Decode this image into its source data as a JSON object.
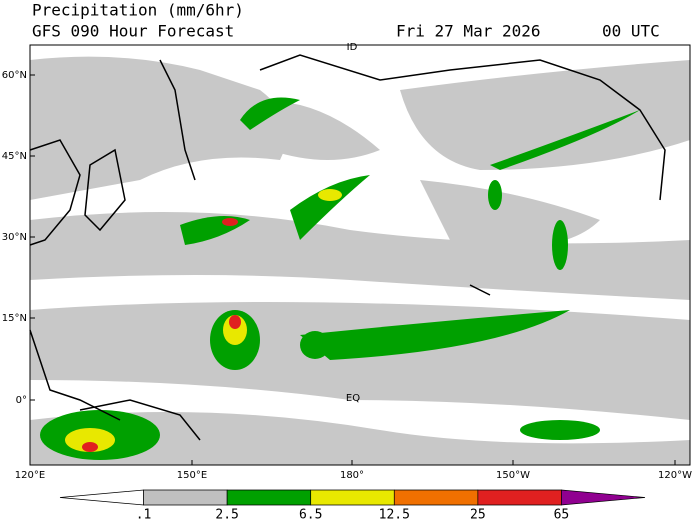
{
  "header": {
    "title": "Precipitation (mm/6hr)",
    "subtitle": "GFS 090 Hour Forecast",
    "date": "Fri 27 Mar 2026",
    "time": "00 UTC"
  },
  "map": {
    "lat_labels": [
      "60°N",
      "45°N",
      "30°N",
      "15°N",
      "0°"
    ],
    "lon_labels": [
      "120°E",
      "150°E",
      "180°",
      "150°W",
      "120°W"
    ],
    "annotations": [
      "ID",
      "EQ"
    ]
  },
  "colorbar": {
    "labels": [
      ".1",
      "2.5",
      "6.5",
      "12.5",
      "25",
      "65"
    ],
    "colors": [
      "#ffffff",
      "#c0c0c0",
      "#00a000",
      "#e8e800",
      "#f07000",
      "#e02020",
      "#900090"
    ]
  }
}
